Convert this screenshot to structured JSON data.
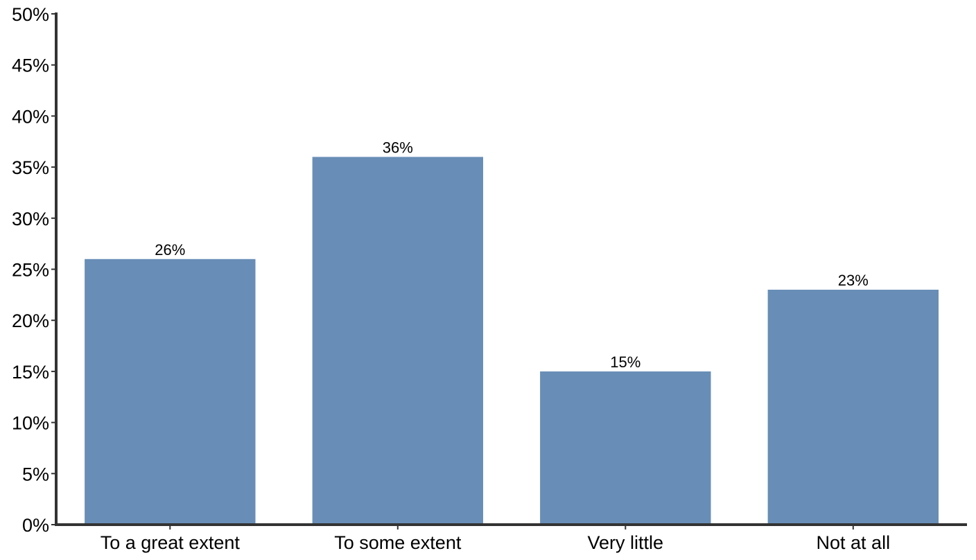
{
  "chart_data": {
    "type": "bar",
    "categories": [
      "To a great extent",
      "To some extent",
      "Very little",
      "Not at all"
    ],
    "values": [
      26,
      36,
      15,
      23
    ],
    "data_labels": [
      "26%",
      "36%",
      "15%",
      "23%"
    ],
    "y_ticks": [
      "0%",
      "5%",
      "10%",
      "15%",
      "20%",
      "25%",
      "30%",
      "35%",
      "40%",
      "45%",
      "50%"
    ],
    "ylim": [
      0,
      50
    ],
    "title": "",
    "xlabel": "",
    "ylabel": "",
    "grid": false,
    "legend": "none",
    "bar_color": "#688EB7",
    "axis_color": "#333333"
  }
}
